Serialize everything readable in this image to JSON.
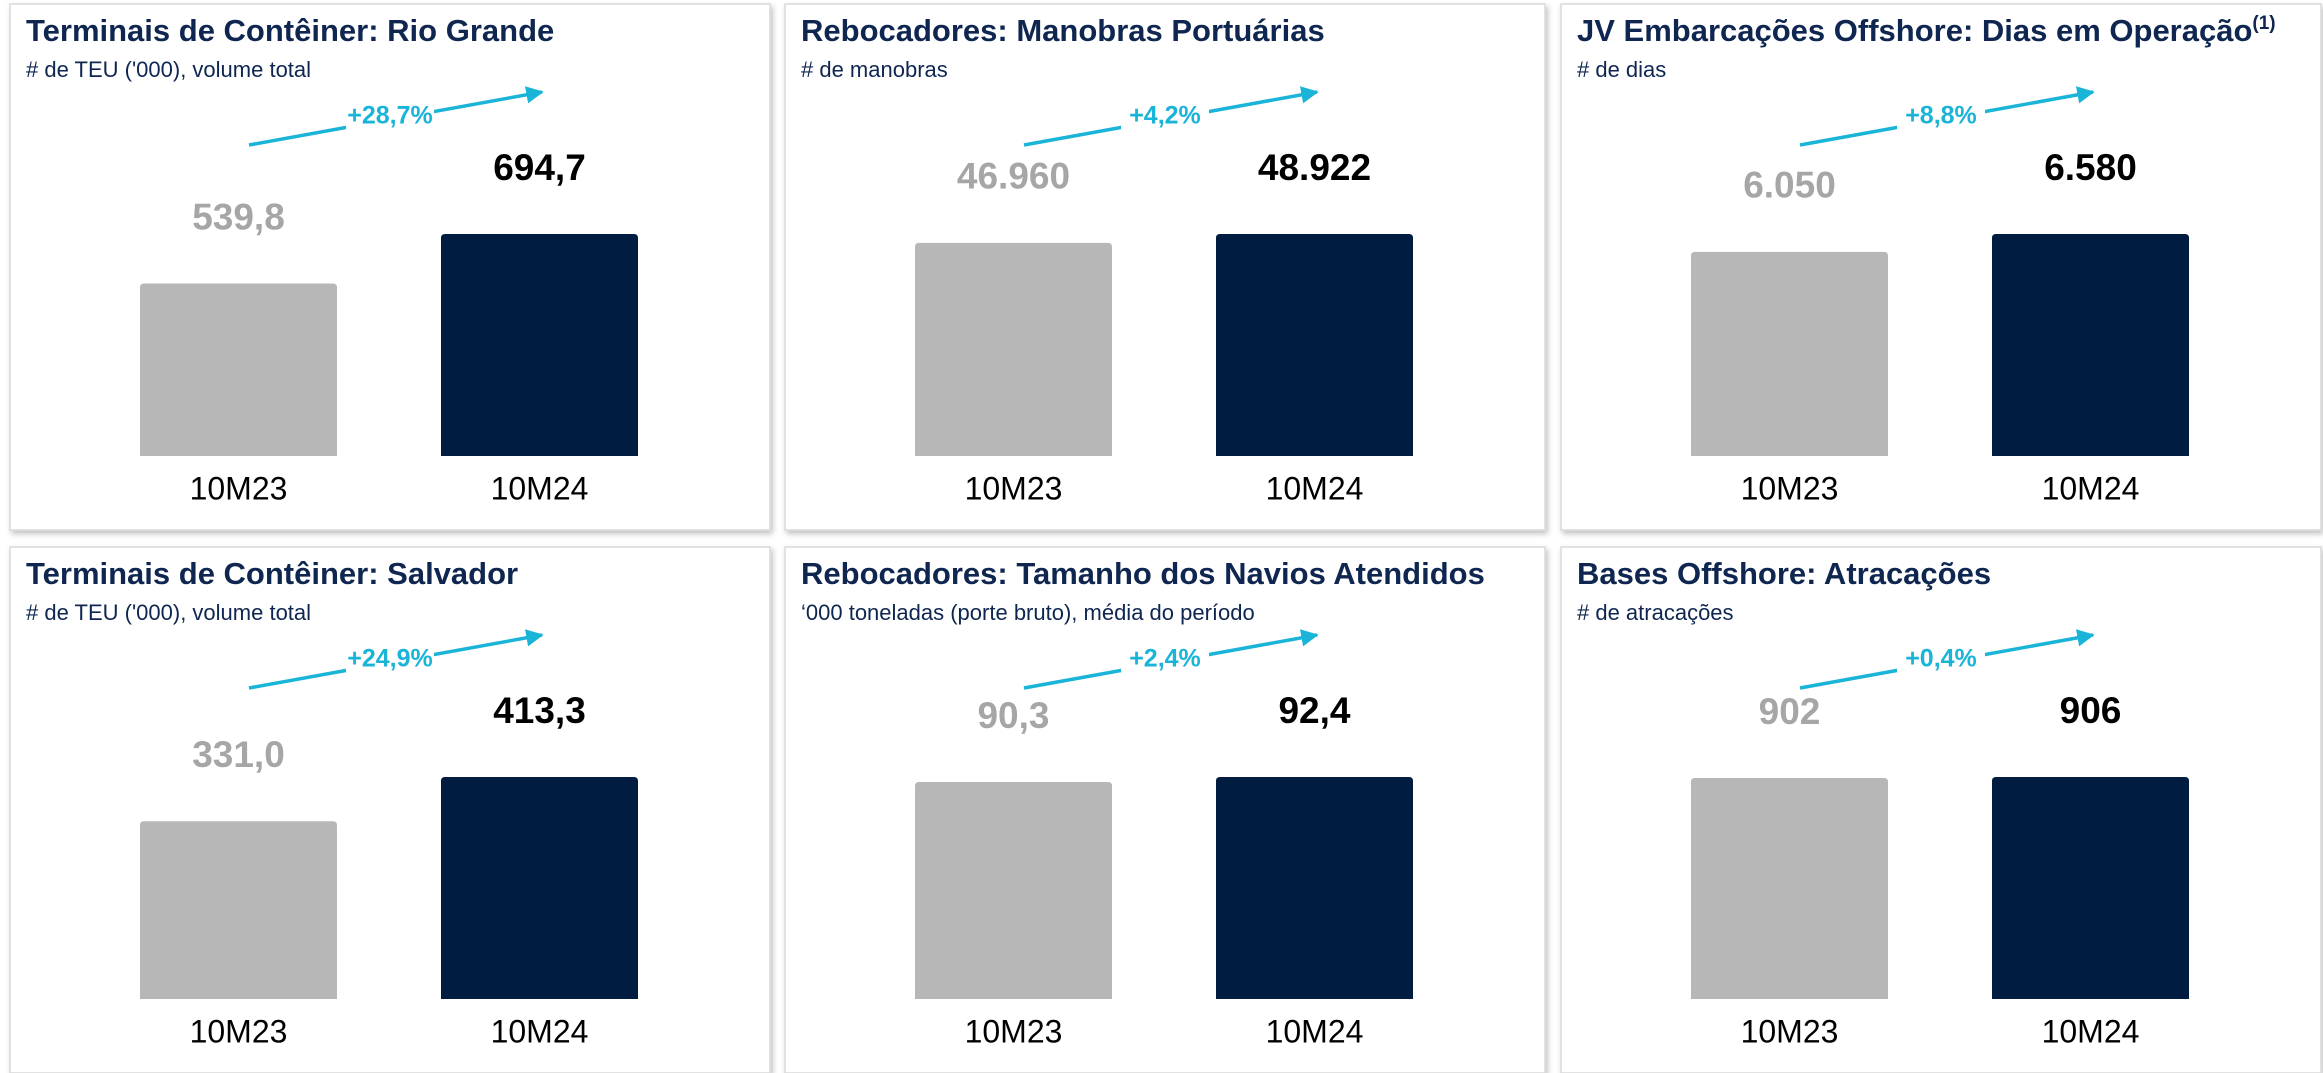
{
  "chart_data": [
    {
      "type": "bar",
      "title": "Terminais de Contêiner: Rio Grande",
      "subtitle": "# de TEU ('000), volume total",
      "categories": [
        "10M23",
        "10M24"
      ],
      "values": [
        539.8,
        694.7
      ],
      "value_labels": [
        "539,8",
        "694,7"
      ],
      "colors": [
        "#b7b7b7",
        "#001c40"
      ],
      "label_colors": [
        "#a6a6a6",
        "#000000"
      ],
      "annotation": "+28,7%"
    },
    {
      "type": "bar",
      "title": "Rebocadores: Manobras Portuárias",
      "subtitle": "# de manobras",
      "categories": [
        "10M23",
        "10M24"
      ],
      "values": [
        46960,
        48922
      ],
      "value_labels": [
        "46.960",
        "48.922"
      ],
      "colors": [
        "#b7b7b7",
        "#001c40"
      ],
      "label_colors": [
        "#a6a6a6",
        "#000000"
      ],
      "annotation": "+4,2%"
    },
    {
      "type": "bar",
      "title": "JV Embarcações Offshore: Dias em Operação",
      "title_superscript": "(1)",
      "subtitle": "# de dias",
      "categories": [
        "10M23",
        "10M24"
      ],
      "values": [
        6050,
        6580
      ],
      "value_labels": [
        "6.050",
        "6.580"
      ],
      "colors": [
        "#b7b7b7",
        "#001c40"
      ],
      "label_colors": [
        "#a6a6a6",
        "#000000"
      ],
      "annotation": "+8,8%"
    },
    {
      "type": "bar",
      "title": "Terminais de Contêiner: Salvador",
      "subtitle": "# de TEU ('000), volume total",
      "categories": [
        "10M23",
        "10M24"
      ],
      "values": [
        331.0,
        413.3
      ],
      "value_labels": [
        "331,0",
        "413,3"
      ],
      "colors": [
        "#b7b7b7",
        "#001c40"
      ],
      "label_colors": [
        "#a6a6a6",
        "#000000"
      ],
      "annotation": "+24,9%"
    },
    {
      "type": "bar",
      "title": "Rebocadores: Tamanho dos Navios Atendidos",
      "subtitle": "‘000 toneladas (porte bruto), média do período",
      "categories": [
        "10M23",
        "10M24"
      ],
      "values": [
        90.3,
        92.4
      ],
      "value_labels": [
        "90,3",
        "92,4"
      ],
      "colors": [
        "#b7b7b7",
        "#001c40"
      ],
      "label_colors": [
        "#a6a6a6",
        "#000000"
      ],
      "annotation": "+2,4%"
    },
    {
      "type": "bar",
      "title": "Bases Offshore: Atracações",
      "subtitle": "# de atracações",
      "categories": [
        "10M23",
        "10M24"
      ],
      "values": [
        902,
        906
      ],
      "value_labels": [
        "902",
        "906"
      ],
      "colors": [
        "#b7b7b7",
        "#001c40"
      ],
      "label_colors": [
        "#a6a6a6",
        "#000000"
      ],
      "annotation": "+0,4%"
    }
  ]
}
